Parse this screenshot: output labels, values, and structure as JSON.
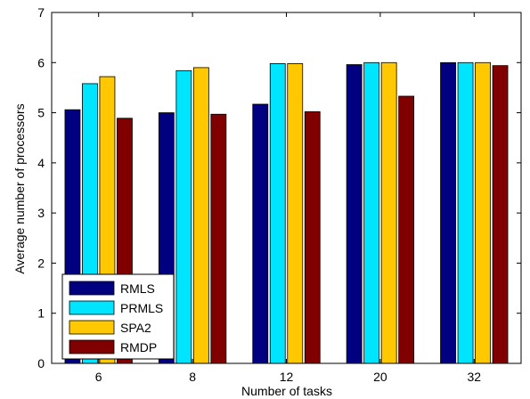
{
  "chart_data": {
    "type": "bar",
    "title": "",
    "xlabel": "Number of tasks",
    "ylabel": "Average number of processors",
    "categories": [
      "6",
      "8",
      "12",
      "20",
      "32"
    ],
    "ylim": [
      0,
      7
    ],
    "yticks": [
      0,
      1,
      2,
      3,
      4,
      5,
      6,
      7
    ],
    "grid": false,
    "legend_position": "bottom-left",
    "series": [
      {
        "name": "RMLS",
        "color": "#000080",
        "values": [
          5.06,
          5.0,
          5.17,
          5.96,
          6.0
        ]
      },
      {
        "name": "PRMLS",
        "color": "#00E5FF",
        "values": [
          5.58,
          5.84,
          5.98,
          6.0,
          6.0
        ]
      },
      {
        "name": "SPA2",
        "color": "#FFC800",
        "values": [
          5.72,
          5.9,
          5.98,
          6.0,
          6.0
        ]
      },
      {
        "name": "RMDP",
        "color": "#800000",
        "values": [
          4.89,
          4.97,
          5.02,
          5.33,
          5.94
        ]
      }
    ]
  }
}
